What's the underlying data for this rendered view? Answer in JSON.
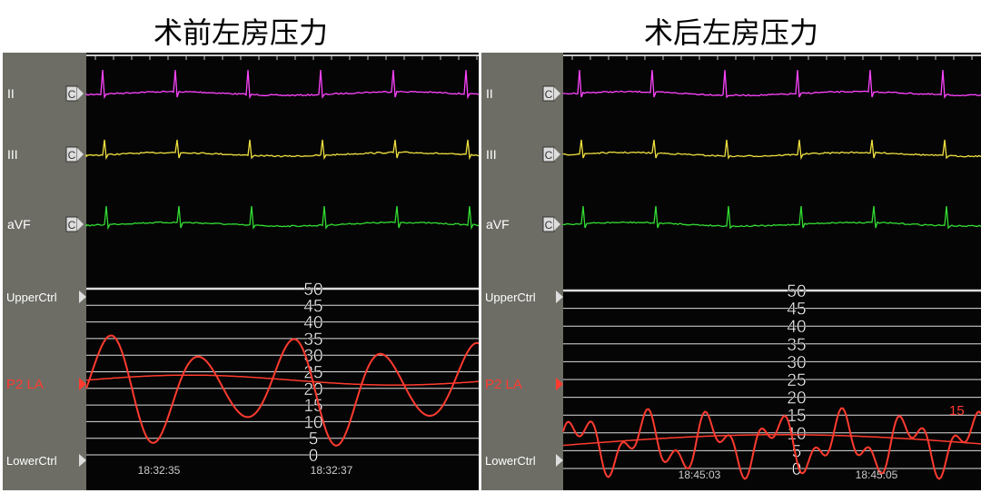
{
  "panels": [
    {
      "title": "术前左房压力",
      "leads": [
        "II",
        "III",
        "aVF"
      ],
      "lead_marker": "C",
      "upper": "UpperCtrl",
      "channel": "P2 LA",
      "lower": "LowerCtrl",
      "scale": [
        50,
        45,
        40,
        35,
        30,
        25,
        20,
        15,
        10,
        5,
        0
      ],
      "times": [
        "18:32:35",
        "18:32:37"
      ]
    },
    {
      "title": "术后左房压力",
      "leads": [
        "II",
        "III",
        "aVF"
      ],
      "lead_marker": "C",
      "upper": "UpperCtrl",
      "channel": "P2 LA",
      "lower": "LowerCtrl",
      "scale": [
        50,
        45,
        40,
        35,
        30,
        25,
        20,
        15,
        10,
        5,
        0
      ],
      "times": [
        "18:45:03",
        "18:45:05"
      ],
      "annotation": "15"
    }
  ]
}
